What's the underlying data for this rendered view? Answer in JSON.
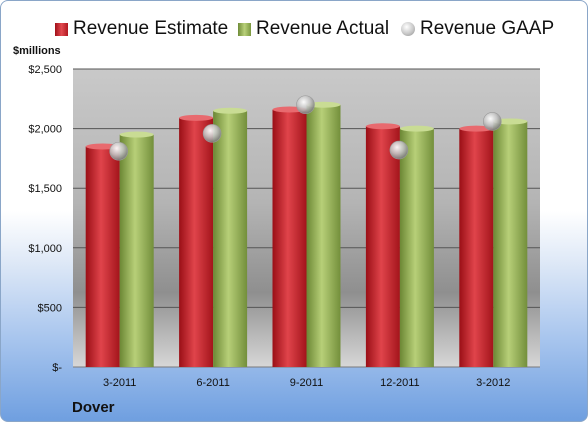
{
  "legend": {
    "estimate": "Revenue Estimate",
    "actual": "Revenue Actual",
    "gaap": "Revenue GAAP"
  },
  "units_label": "$millions",
  "company": "Dover",
  "colors": {
    "estimate": "#c81e25",
    "actual": "#93b04f",
    "gaap": "#bfbfbf"
  },
  "chart_data": {
    "type": "bar",
    "title": "",
    "xlabel": "",
    "ylabel": "$millions",
    "ylim": [
      0,
      2500
    ],
    "yticks": [
      0,
      500,
      1000,
      1500,
      2000,
      2500
    ],
    "ytick_labels": [
      "$-",
      "$500",
      "$1,000",
      "$1,500",
      "$2,000",
      "$2,500"
    ],
    "categories": [
      "3-2011",
      "6-2011",
      "9-2011",
      "12-2011",
      "3-2012"
    ],
    "series": [
      {
        "name": "Revenue Estimate",
        "type": "bar",
        "values": [
          1850,
          2090,
          2160,
          2020,
          2000
        ]
      },
      {
        "name": "Revenue Actual",
        "type": "bar",
        "values": [
          1950,
          2150,
          2200,
          2000,
          2060
        ]
      },
      {
        "name": "Revenue GAAP",
        "type": "marker",
        "values": [
          1810,
          1960,
          2200,
          1820,
          2060
        ]
      }
    ],
    "grid": true,
    "legend_position": "top"
  }
}
